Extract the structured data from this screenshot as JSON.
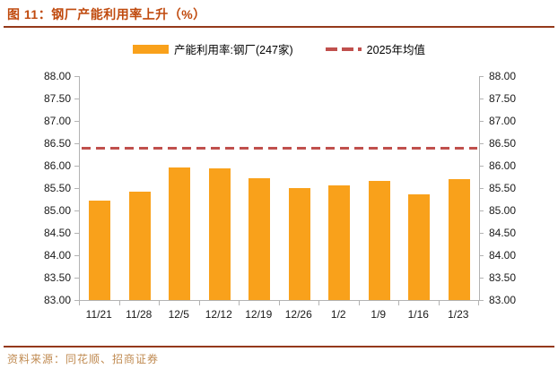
{
  "header": {
    "title": "图 11：钢厂产能利用率上升（%）"
  },
  "chart_data": {
    "type": "bar",
    "title": "钢厂产能利用率上升（%）",
    "series_name": "产能利用率:钢厂(247家)",
    "categories": [
      "11/21",
      "11/28",
      "12/5",
      "12/12",
      "12/19",
      "12/26",
      "1/2",
      "1/9",
      "1/16",
      "1/23"
    ],
    "values": [
      85.22,
      85.42,
      85.96,
      85.94,
      85.72,
      85.51,
      85.56,
      85.67,
      85.37,
      85.71
    ],
    "mean_line": {
      "label": "2025年均值",
      "value": 86.4,
      "style": "dashed"
    },
    "ylim": [
      83.0,
      88.0
    ],
    "ytick_step": 0.5,
    "yticks": [
      "88.00",
      "87.50",
      "87.00",
      "86.50",
      "86.00",
      "85.50",
      "85.00",
      "84.50",
      "84.00",
      "83.50",
      "83.00"
    ],
    "grid": false,
    "legend_position": "top",
    "dual_y_axis": true
  },
  "footer": {
    "source": "资料来源：同花顺、招商证券"
  },
  "colors": {
    "bar": "#F9A11B",
    "dash_line": "#C0504D",
    "title": "#C04A0E",
    "rule": "#94391B",
    "footer_text": "#C08B52",
    "axis": "#B3B3B3",
    "tick_label": "#1A1A1A"
  }
}
